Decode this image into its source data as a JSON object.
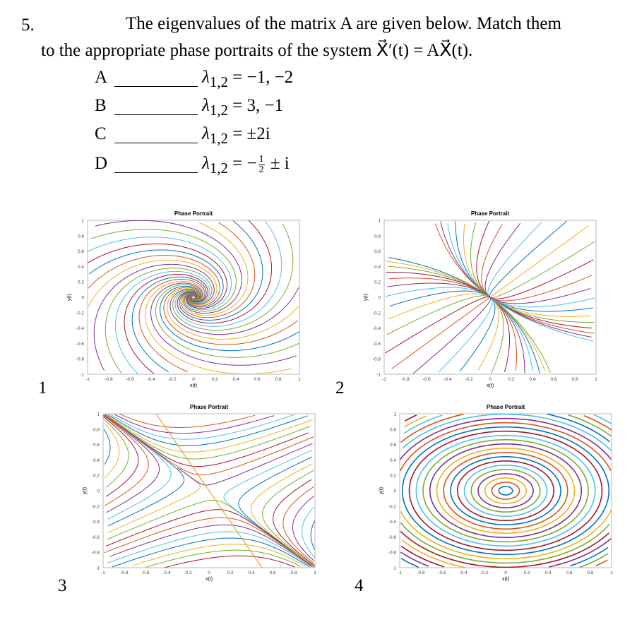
{
  "question": {
    "number": "5.",
    "line1": "The eigenvalues of the matrix A are given below. Match them",
    "line2": "to the appropriate phase portraits of the system X⃗′(t) = AX⃗(t)."
  },
  "items": [
    {
      "letter": "A",
      "lambda": "λ",
      "sub": "1,2",
      "rest": " = −1, −2"
    },
    {
      "letter": "B",
      "lambda": "λ",
      "sub": "1,2",
      "rest": " = 3, −1"
    },
    {
      "letter": "C",
      "lambda": "λ",
      "sub": "1,2",
      "rest": " = ±2i"
    },
    {
      "letter": "D",
      "lambda": "λ",
      "sub": "1,2",
      "pre": " = −",
      "frac_num": "1",
      "frac_den": "2",
      "post": " ± i"
    }
  ],
  "plots": [
    {
      "id": "1",
      "title": "Phase Portrait",
      "xlabel": "x(t)",
      "ylabel": "y(t)",
      "kind": "spiral"
    },
    {
      "id": "2",
      "title": "Phase Portrait",
      "xlabel": "x(t)",
      "ylabel": "y(t)",
      "kind": "node"
    },
    {
      "id": "3",
      "title": "Phase Portrait",
      "xlabel": "x(t)",
      "ylabel": "y(t)",
      "kind": "saddle"
    },
    {
      "id": "4",
      "title": "Phase Portrait",
      "xlabel": "x(t)",
      "ylabel": "y(t)",
      "kind": "center"
    }
  ],
  "ticks": [
    "-1",
    "-0.8",
    "-0.6",
    "-0.4",
    "-0.2",
    "0",
    "0.2",
    "0.4",
    "0.6",
    "0.8",
    "1"
  ],
  "palette": [
    "#0072BD",
    "#D95319",
    "#EDB120",
    "#7E2F8E",
    "#77AC30",
    "#4DBEEE",
    "#A2142F"
  ]
}
